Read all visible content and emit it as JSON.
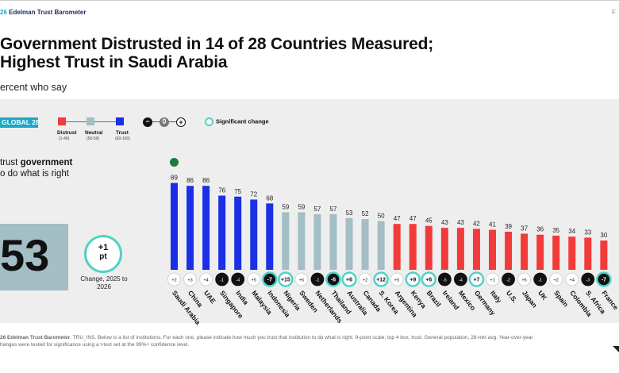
{
  "header": {
    "brand_year": "26",
    "brand_name": " Edelman Trust Barometer",
    "page_mark": "F"
  },
  "title_line1": "Government Distrusted in 14 of 28 Countries Measured;",
  "title_line2": "Highest Trust in Saudi Arabia",
  "subtitle": "ercent who say",
  "global_badge": "GLOBAL 28",
  "legend": {
    "distrust": "Distrust",
    "distrust_range": "(1-49)",
    "neutral": "Neutral",
    "neutral_range": "(50-59)",
    "trust": "Trust",
    "trust_range": "(60-100)",
    "minus_symbol": "−",
    "zero_symbol": "0",
    "plus_symbol": "+",
    "significant_change": "Significant change"
  },
  "question": {
    "prefix": "trust ",
    "bold": "government",
    "line2": "o do what is right"
  },
  "summary": {
    "global_value": "53",
    "change_value": "+1",
    "change_unit": "pt",
    "change_label": "Change, 2025 to 2026"
  },
  "colors": {
    "distrust": "#f33a3a",
    "neutral": "#a3bec4",
    "trust": "#1a2fe6",
    "significant": "#4fd3c4",
    "dark_circle": "#111111"
  },
  "chart_data": {
    "type": "bar",
    "categories": [
      "Saudi Arabia",
      "China",
      "UAE",
      "Singapore",
      "India",
      "Malaysia",
      "Indonesia",
      "Nigeria",
      "Sweden",
      "Netherlands",
      "Thailand",
      "Australia",
      "Canada",
      "S. Korea",
      "Argentina",
      "Kenya",
      "Brazil",
      "Ireland",
      "Mexico",
      "Germany",
      "Italy",
      "U.S.",
      "Japan",
      "UK",
      "Spain",
      "Colombia",
      "S. Africa",
      "France"
    ],
    "values": [
      89,
      86,
      86,
      76,
      75,
      72,
      68,
      59,
      59,
      57,
      57,
      53,
      52,
      50,
      47,
      47,
      45,
      43,
      43,
      42,
      41,
      39,
      37,
      36,
      35,
      34,
      33,
      30
    ],
    "changes": [
      "+2",
      "+3",
      "+4",
      "-1",
      "-4",
      "+5",
      "-7",
      "+15",
      "+5",
      "-1",
      "-6",
      "+6",
      "+2",
      "+12",
      "+5",
      "+9",
      "+6",
      "-5",
      "-4",
      "+7",
      "+1",
      "-2",
      "+5",
      "-1",
      "+2",
      "+4",
      "-3",
      "-7"
    ],
    "change_style": [
      "white",
      "white",
      "white",
      "dark",
      "dark",
      "white",
      "dark-sig",
      "white-sig",
      "white",
      "dark",
      "dark-sig",
      "white-sig",
      "white",
      "white-sig",
      "white",
      "white-sig",
      "white-sig",
      "dark",
      "dark",
      "white-sig",
      "white",
      "dark",
      "white",
      "dark",
      "white",
      "white",
      "dark",
      "dark-sig"
    ],
    "color_bands": {
      "distrust": [
        1,
        49
      ],
      "neutral": [
        50,
        59
      ],
      "trust": [
        60,
        100
      ]
    },
    "ylim": [
      0,
      100
    ],
    "grid": false,
    "legend_position": "top-left"
  },
  "footer": {
    "source_bold": "26 Edelman Trust Barometer",
    "source_text": ". TRU_INS. Below is a list of institutions. For each one, please indicate how much you trust that institution to do what is right. 9-point scale; top 4 box, trust. General population, 28-mkt avg. Year-over-year",
    "line2": "hanges were tested for significance using a t-test set at the 99%+ confidence level."
  }
}
